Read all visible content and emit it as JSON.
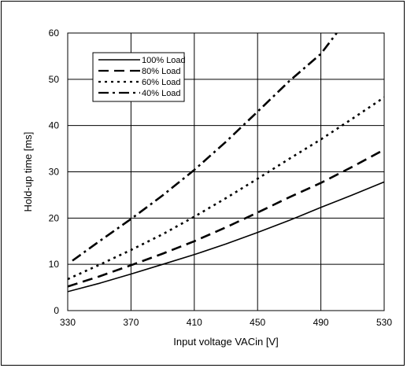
{
  "chart_data": {
    "type": "line",
    "title": "",
    "xlabel": "Input voltage VACin [V]",
    "ylabel": "Hold-up time [ms]",
    "xlim": [
      330,
      530
    ],
    "ylim": [
      0,
      60
    ],
    "xticks": [
      330,
      370,
      410,
      450,
      490,
      530
    ],
    "yticks": [
      0,
      10,
      20,
      30,
      40,
      50,
      60
    ],
    "grid": true,
    "legend_position": "top-left",
    "series": [
      {
        "name": "100% Load",
        "style": "solid",
        "x": [
          330,
          350,
          370,
          390,
          410,
          430,
          450,
          470,
          490,
          510,
          530
        ],
        "y": [
          4.1,
          5.9,
          7.9,
          10.0,
          12.1,
          14.4,
          16.9,
          19.5,
          22.3,
          25.0,
          27.8
        ]
      },
      {
        "name": "80% Load",
        "style": "dash",
        "x": [
          330,
          350,
          370,
          390,
          410,
          430,
          450,
          470,
          490,
          510,
          530
        ],
        "y": [
          5.2,
          7.4,
          9.8,
          12.3,
          15.0,
          18.0,
          21.2,
          24.5,
          27.6,
          31.1,
          34.8
        ]
      },
      {
        "name": "60% Load",
        "style": "dot",
        "x": [
          330,
          350,
          370,
          390,
          410,
          430,
          450,
          470,
          490,
          510,
          530
        ],
        "y": [
          6.8,
          9.9,
          13.1,
          16.5,
          20.3,
          24.3,
          28.5,
          32.8,
          37.0,
          41.5,
          46.1
        ]
      },
      {
        "name": "40% Load",
        "style": "dash-dot",
        "x": [
          333,
          350,
          370,
          390,
          410,
          430,
          450,
          470,
          490,
          500
        ],
        "y": [
          10.8,
          15.0,
          19.8,
          24.9,
          30.4,
          36.5,
          43.0,
          49.6,
          55.5,
          60.0
        ]
      }
    ]
  }
}
